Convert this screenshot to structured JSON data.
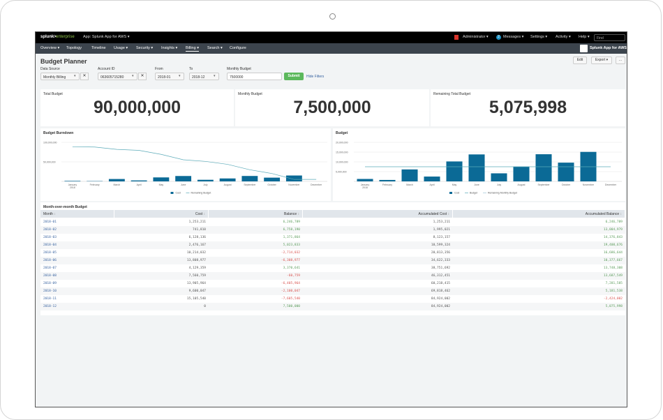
{
  "top_bar": {
    "logo_brand": "splunk>",
    "logo_product": "enterprise",
    "app": "App: Splunk App for AWS",
    "user": "Administrator",
    "messages_count": "2",
    "messages": "Messages",
    "menus": [
      "Settings",
      "Activity",
      "Help"
    ],
    "search_placeholder": "Find"
  },
  "nav": {
    "items": [
      "Overview",
      "Topology",
      "Timeline",
      "Usage",
      "Security",
      "Insights",
      "Billing",
      "Search",
      "Configure"
    ],
    "dropdown": [
      true,
      false,
      false,
      true,
      true,
      true,
      true,
      true,
      false
    ],
    "active": 6,
    "app_label": "Splunk App for AWS"
  },
  "dashboard": {
    "title": "Budget Planner",
    "buttons": [
      "Edit",
      "Export",
      "..."
    ]
  },
  "filters": [
    {
      "label": "Data Source",
      "value": "Monthly Billing",
      "kind": "select-clear"
    },
    {
      "label": "Account ID",
      "value": "063605715280",
      "kind": "select-clear"
    },
    {
      "label": "From",
      "value": "2018-01",
      "kind": "select"
    },
    {
      "label": "To",
      "value": "2018-12",
      "kind": "select"
    },
    {
      "label": "Monthly Budget",
      "value": "7500000",
      "kind": "text"
    }
  ],
  "submit": "Submit",
  "hide_filters": "Hide Filters",
  "kpis": [
    {
      "label": "Total Budget",
      "value": "90,000,000"
    },
    {
      "label": "Monthly Budget",
      "value": "7,500,000"
    },
    {
      "label": "Remaining Total Budget",
      "value": "5,075,998"
    }
  ],
  "charts": [
    {
      "type": "bar",
      "title": "Budget Burndown",
      "categories": [
        "January",
        "February",
        "March",
        "April",
        "May",
        "June",
        "July",
        "August",
        "September",
        "October",
        "November",
        "December"
      ],
      "first_category_sub": "2018",
      "ylim": [
        0,
        100000000
      ],
      "yticks": [
        {
          "value": 50000000,
          "label": "50,000,000"
        },
        {
          "value": 100000000,
          "label": "100,000,000"
        }
      ],
      "grid": true,
      "series": [
        {
          "name": "Cost",
          "kind": "bar",
          "color": "#0b6a96",
          "values": [
            1253211,
            741810,
            6128136,
            2476167,
            10214032,
            13808977,
            4129359,
            7560759,
            13905964,
            9600047,
            15105540,
            0
          ]
        },
        {
          "name": "Remaining Budget",
          "kind": "line",
          "color": "#5aaab8",
          "values": [
            88746789,
            88004979,
            81876843,
            79400676,
            69186644,
            55377667,
            51248308,
            43687549,
            29781585,
            20181538,
            5075998,
            5075998
          ]
        }
      ]
    },
    {
      "type": "bar",
      "title": "Budget",
      "categories": [
        "January",
        "February",
        "March",
        "April",
        "May",
        "June",
        "July",
        "August",
        "September",
        "October",
        "November",
        "December"
      ],
      "first_category_sub": "2018",
      "ylim": [
        0,
        20000000
      ],
      "yticks": [
        {
          "value": 5000000,
          "label": "5,000,000"
        },
        {
          "value": 10000000,
          "label": "10,000,000"
        },
        {
          "value": 15000000,
          "label": "15,000,000"
        },
        {
          "value": 20000000,
          "label": "20,000,000"
        }
      ],
      "grid": true,
      "series": [
        {
          "name": "Cost",
          "kind": "bar",
          "color": "#0b6a96",
          "values": [
            1253211,
            741810,
            6128136,
            2476167,
            10214032,
            13808977,
            4129359,
            7560759,
            13905964,
            9600047,
            15105540,
            0
          ]
        },
        {
          "name": "Budget",
          "kind": "line",
          "color": "#5aaab8",
          "values": [
            7500000,
            7500000,
            7500000,
            7500000,
            7500000,
            7500000,
            7500000,
            7500000,
            7500000,
            7500000,
            7500000,
            7500000
          ]
        },
        {
          "name": "Remaining Monthly Budget",
          "kind": "line",
          "color": "#9fc8d8",
          "values": [
            null,
            null,
            null,
            null,
            null,
            null,
            null,
            null,
            null,
            null,
            null,
            null
          ]
        }
      ]
    }
  ],
  "table": {
    "title": "Month-over-month Budget",
    "columns": [
      "Month",
      "Cost",
      "Balance",
      "Accumulated Cost",
      "Accumulated Balance"
    ],
    "rows": [
      [
        "2018-01",
        "1,253,211",
        "6,246,789",
        "1,253,211",
        "6,246,789"
      ],
      [
        "2018-02",
        "741,810",
        "6,758,190",
        "1,995,021",
        "13,004,979"
      ],
      [
        "2018-03",
        "6,128,136",
        "1,371,864",
        "8,123,157",
        "14,376,843"
      ],
      [
        "2018-04",
        "2,476,167",
        "5,023,833",
        "10,599,324",
        "19,400,676"
      ],
      [
        "2018-05",
        "10,214,032",
        "-2,714,032",
        "20,813,356",
        "16,686,644"
      ],
      [
        "2018-06",
        "13,808,977",
        "-6,308,977",
        "34,622,333",
        "10,377,667"
      ],
      [
        "2018-07",
        "4,129,359",
        "3,370,641",
        "38,751,692",
        "13,748,308"
      ],
      [
        "2018-08",
        "7,560,759",
        "-60,759",
        "46,312,451",
        "13,687,549"
      ],
      [
        "2018-09",
        "13,905,964",
        "-6,405,964",
        "60,218,415",
        "7,281,585"
      ],
      [
        "2018-10",
        "9,600,047",
        "-2,100,047",
        "69,818,462",
        "5,181,538"
      ],
      [
        "2018-11",
        "15,105,540",
        "-7,605,540",
        "84,924,002",
        "-2,424,002"
      ],
      [
        "2018-12",
        "0",
        "7,500,000",
        "84,924,002",
        "5,075,998"
      ]
    ]
  }
}
